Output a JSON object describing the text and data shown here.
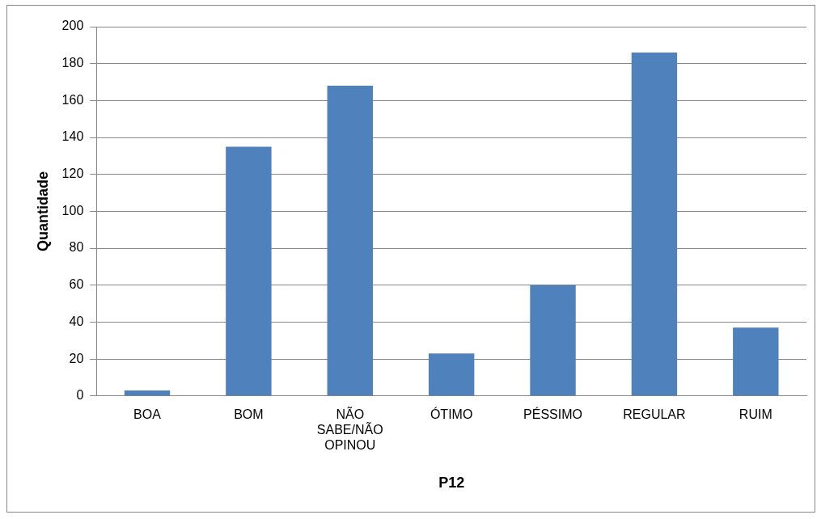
{
  "chart_data": {
    "type": "bar",
    "xlabel": "P12",
    "ylabel": "Quantidade",
    "categories": [
      "BOA",
      "BOM",
      "NÃO SABE/NÃO OPINOU",
      "ÓTIMO",
      "PÉSSIMO",
      "REGULAR",
      "RUIM"
    ],
    "values": [
      3,
      135,
      168,
      23,
      60,
      186,
      37
    ],
    "color": "#4f81bd",
    "ylim": [
      0,
      200
    ],
    "yticks": [
      0,
      20,
      40,
      60,
      80,
      100,
      120,
      140,
      160,
      180,
      200
    ],
    "grid": "y",
    "legend": false
  }
}
